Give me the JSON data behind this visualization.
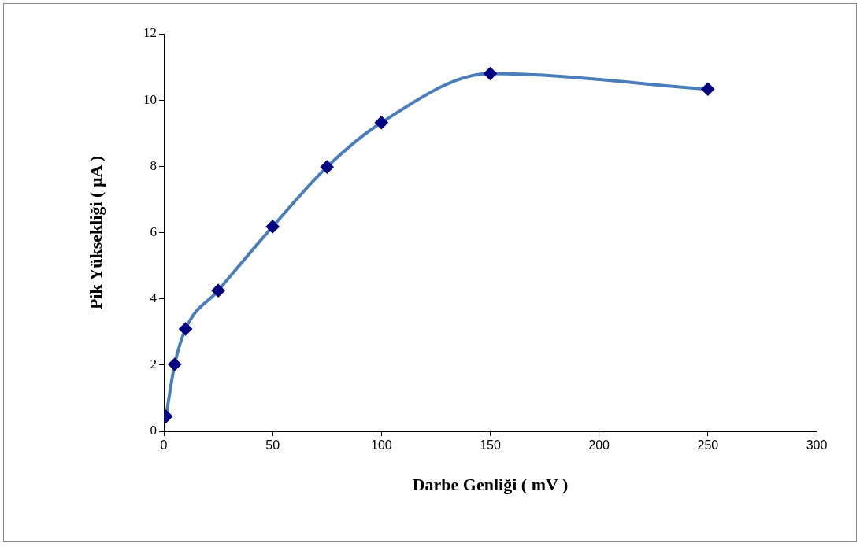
{
  "chart_data": {
    "type": "line",
    "xlabel": "Darbe Genliği ( mV )",
    "ylabel": "Pik Yüksekliği ( µA )",
    "x": [
      1,
      5,
      10,
      25,
      50,
      75,
      100,
      150,
      250
    ],
    "series": [
      {
        "color": "#4a7ebb",
        "values": [
          0.45,
          2.02,
          3.09,
          4.25,
          6.18,
          7.98,
          9.32,
          10.8,
          10.33
        ]
      }
    ],
    "marker": "diamond",
    "grid": false,
    "legend": false,
    "xlim": [
      0,
      300
    ],
    "xticks": [
      0,
      50,
      100,
      150,
      200,
      250,
      300
    ],
    "ylim": [
      0,
      12
    ],
    "yticks": [
      0,
      2,
      4,
      6,
      8,
      10,
      12
    ]
  }
}
